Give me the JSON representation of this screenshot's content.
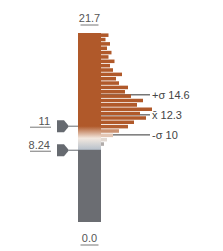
{
  "chart_data": {
    "type": "histogram",
    "ylim": [
      0,
      21.7
    ],
    "yticks": [
      {
        "value": 0,
        "label": "0.0"
      },
      21.7
    ],
    "xlim": [
      0,
      40
    ],
    "tick_labels": "y",
    "color": "#b0592a",
    "bins": [
      8.7,
      9.2,
      9.7,
      10.2,
      10.7,
      11.2,
      11.7,
      12.2,
      12.7,
      13.2,
      13.7,
      14.2,
      14.7,
      15.2,
      15.7,
      16.2,
      16.7,
      17.2,
      17.7,
      18.2,
      18.7,
      19.2,
      19.7,
      20.2,
      20.7,
      21.2,
      21.7
    ],
    "counts": [
      2,
      4,
      8,
      12,
      18,
      22,
      30,
      26,
      34,
      24,
      28,
      20,
      16,
      18,
      12,
      10,
      14,
      8,
      6,
      9,
      5,
      7,
      4,
      6,
      3,
      5
    ],
    "thresholds": [
      11,
      8.24
    ],
    "annotations": [
      {
        "label": "+σ",
        "value": 14.6
      },
      {
        "label": "x̄",
        "value": 12.3
      },
      {
        "label": "-σ",
        "value": 10
      }
    ]
  }
}
